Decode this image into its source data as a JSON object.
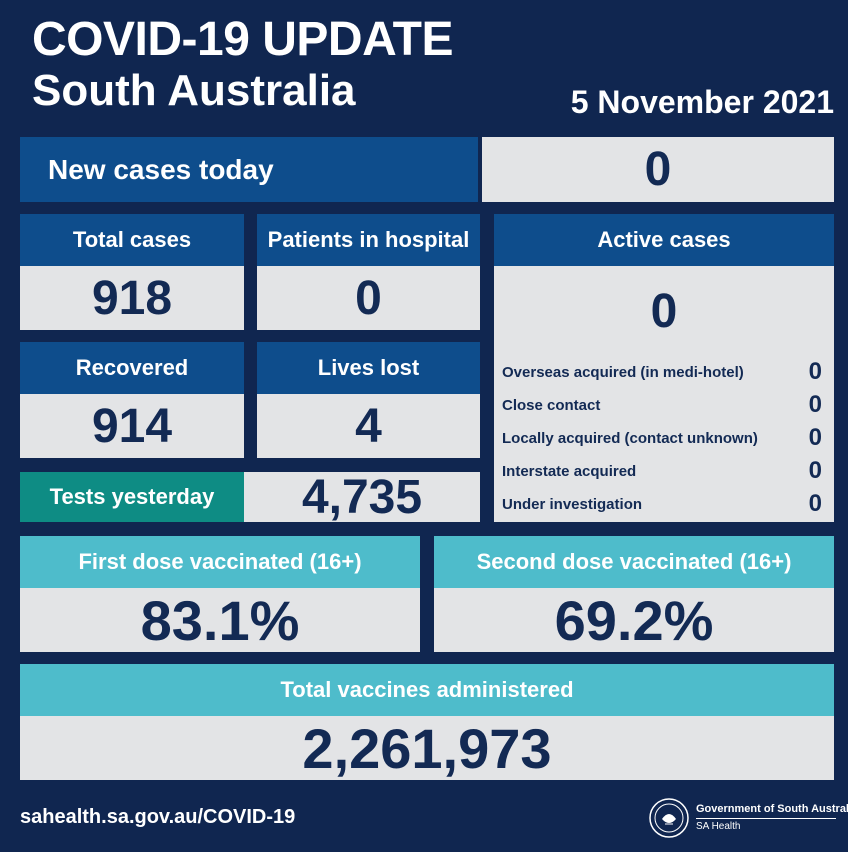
{
  "header": {
    "title": "COVID-19 UPDATE",
    "subtitle": "South Australia",
    "date": "5 November 2021"
  },
  "new_cases": {
    "label": "New cases today",
    "value": "0"
  },
  "total_cases": {
    "label": "Total cases",
    "value": "918"
  },
  "patients_in_hospital": {
    "label": "Patients in hospital",
    "value": "0"
  },
  "recovered": {
    "label": "Recovered",
    "value": "914"
  },
  "lives_lost": {
    "label": "Lives lost",
    "value": "4"
  },
  "tests_yesterday": {
    "label": "Tests yesterday",
    "value": "4,735"
  },
  "active_cases": {
    "label": "Active cases",
    "value": "0",
    "breakdown": [
      {
        "label": "Overseas acquired (in medi-hotel)",
        "value": "0"
      },
      {
        "label": "Close contact",
        "value": "0"
      },
      {
        "label": "Locally acquired (contact unknown)",
        "value": "0"
      },
      {
        "label": "Interstate acquired",
        "value": "0"
      },
      {
        "label": "Under investigation",
        "value": "0"
      }
    ]
  },
  "first_dose": {
    "label": "First dose vaccinated (16+)",
    "value": "83.1%"
  },
  "second_dose": {
    "label": "Second dose vaccinated (16+)",
    "value": "69.2%"
  },
  "total_vaccines": {
    "label": "Total vaccines administered",
    "value": "2,261,973"
  },
  "footer": {
    "url": "sahealth.sa.gov.au/COVID-19",
    "gov_name": "Government of South Australia",
    "gov_dept": "SA Health",
    "logo_icon": "sa-government-crest-icon"
  },
  "colors": {
    "background": "#102650",
    "header_blue": "#0e4d8c",
    "header_teal": "#0e8c84",
    "header_cyan": "#4ebccb",
    "value_bg": "#e3e4e6",
    "value_text": "#132a54"
  }
}
